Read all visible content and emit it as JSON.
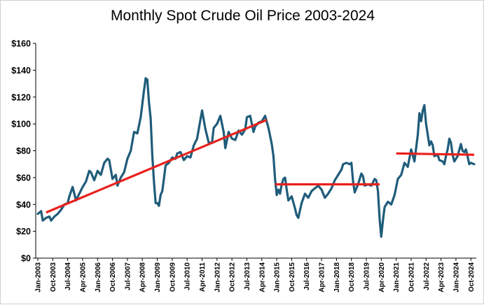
{
  "chart_data": {
    "type": "line",
    "title": "Monthly Spot Crude Oil Price 2003-2024",
    "xlabel": "",
    "ylabel": "",
    "ylim": [
      0,
      160
    ],
    "xlim": [
      "2003-01",
      "2024-12"
    ],
    "grid": false,
    "legend": "none",
    "y_tick_labels": [
      "$0",
      "$20",
      "$40",
      "$60",
      "$80",
      "$100",
      "$120",
      "$140",
      "$160"
    ],
    "x_tick_labels": [
      "Jan-2003",
      "Oct-2003",
      "Jul-2004",
      "Apr-2005",
      "Jan-2006",
      "Oct-2006",
      "Jul-2007",
      "Apr-2008",
      "Jan-2009",
      "Oct-2009",
      "Jul-2010",
      "Apr-2011",
      "Jan-2012",
      "Oct-2012",
      "Jul-2013",
      "Apr-2014",
      "Jan-2015",
      "Oct-2015",
      "Jul-2016",
      "Apr-2017",
      "Jan-2018",
      "Oct-2018",
      "Jul-2019",
      "Apr-2020",
      "Jan-2021",
      "Oct-2021",
      "Jul-2022",
      "Apr-2023",
      "Jan-2024",
      "Oct-2024"
    ],
    "series": [
      {
        "color": "#1f5c7a",
        "points": [
          [
            "2003-01",
            33
          ],
          [
            "2003-03",
            35
          ],
          [
            "2003-04",
            28
          ],
          [
            "2003-06",
            30
          ],
          [
            "2003-08",
            31
          ],
          [
            "2003-09",
            28
          ],
          [
            "2003-11",
            31
          ],
          [
            "2004-01",
            33
          ],
          [
            "2004-03",
            36
          ],
          [
            "2004-05",
            40
          ],
          [
            "2004-07",
            41
          ],
          [
            "2004-08",
            46
          ],
          [
            "2004-10",
            53
          ],
          [
            "2004-12",
            43
          ],
          [
            "2005-02",
            48
          ],
          [
            "2005-04",
            53
          ],
          [
            "2005-06",
            57
          ],
          [
            "2005-08",
            65
          ],
          [
            "2005-09",
            64
          ],
          [
            "2005-11",
            58
          ],
          [
            "2006-01",
            65
          ],
          [
            "2006-03",
            62
          ],
          [
            "2006-05",
            71
          ],
          [
            "2006-07",
            74
          ],
          [
            "2006-08",
            73
          ],
          [
            "2006-10",
            59
          ],
          [
            "2006-12",
            62
          ],
          [
            "2007-01",
            54
          ],
          [
            "2007-03",
            60
          ],
          [
            "2007-05",
            64
          ],
          [
            "2007-07",
            74
          ],
          [
            "2007-09",
            80
          ],
          [
            "2007-11",
            94
          ],
          [
            "2008-01",
            93
          ],
          [
            "2008-03",
            105
          ],
          [
            "2008-05",
            125
          ],
          [
            "2008-06",
            134
          ],
          [
            "2008-07",
            133
          ],
          [
            "2008-08",
            116
          ],
          [
            "2008-09",
            104
          ],
          [
            "2008-10",
            77
          ],
          [
            "2008-11",
            57
          ],
          [
            "2008-12",
            41
          ],
          [
            "2009-01",
            41
          ],
          [
            "2009-02",
            39
          ],
          [
            "2009-03",
            47
          ],
          [
            "2009-04",
            50
          ],
          [
            "2009-05",
            59
          ],
          [
            "2009-06",
            69
          ],
          [
            "2009-08",
            71
          ],
          [
            "2009-10",
            75
          ],
          [
            "2009-12",
            74
          ],
          [
            "2010-01",
            78
          ],
          [
            "2010-03",
            79
          ],
          [
            "2010-05",
            73
          ],
          [
            "2010-07",
            76
          ],
          [
            "2010-09",
            75
          ],
          [
            "2010-11",
            84
          ],
          [
            "2011-01",
            89
          ],
          [
            "2011-03",
            103
          ],
          [
            "2011-04",
            110
          ],
          [
            "2011-06",
            96
          ],
          [
            "2011-08",
            86
          ],
          [
            "2011-10",
            86
          ],
          [
            "2011-11",
            97
          ],
          [
            "2012-01",
            100
          ],
          [
            "2012-03",
            106
          ],
          [
            "2012-05",
            94
          ],
          [
            "2012-06",
            82
          ],
          [
            "2012-08",
            94
          ],
          [
            "2012-10",
            89
          ],
          [
            "2012-12",
            88
          ],
          [
            "2013-02",
            95
          ],
          [
            "2013-04",
            92
          ],
          [
            "2013-06",
            96
          ],
          [
            "2013-07",
            105
          ],
          [
            "2013-09",
            106
          ],
          [
            "2013-11",
            94
          ],
          [
            "2013-12",
            98
          ],
          [
            "2014-02",
            101
          ],
          [
            "2014-04",
            102
          ],
          [
            "2014-06",
            106
          ],
          [
            "2014-08",
            97
          ],
          [
            "2014-10",
            85
          ],
          [
            "2014-11",
            76
          ],
          [
            "2014-12",
            59
          ],
          [
            "2015-01",
            47
          ],
          [
            "2015-02",
            51
          ],
          [
            "2015-03",
            48
          ],
          [
            "2015-04",
            55
          ],
          [
            "2015-05",
            59
          ],
          [
            "2015-06",
            60
          ],
          [
            "2015-07",
            51
          ],
          [
            "2015-08",
            43
          ],
          [
            "2015-10",
            46
          ],
          [
            "2015-12",
            37
          ],
          [
            "2016-01",
            32
          ],
          [
            "2016-02",
            30
          ],
          [
            "2016-04",
            41
          ],
          [
            "2016-06",
            48
          ],
          [
            "2016-08",
            45
          ],
          [
            "2016-10",
            50
          ],
          [
            "2016-12",
            52
          ],
          [
            "2017-02",
            54
          ],
          [
            "2017-04",
            51
          ],
          [
            "2017-06",
            45
          ],
          [
            "2017-08",
            48
          ],
          [
            "2017-10",
            52
          ],
          [
            "2017-12",
            58
          ],
          [
            "2018-02",
            62
          ],
          [
            "2018-04",
            66
          ],
          [
            "2018-05",
            70
          ],
          [
            "2018-07",
            71
          ],
          [
            "2018-09",
            70
          ],
          [
            "2018-10",
            71
          ],
          [
            "2018-11",
            57
          ],
          [
            "2018-12",
            49
          ],
          [
            "2019-02",
            55
          ],
          [
            "2019-04",
            63
          ],
          [
            "2019-05",
            61
          ],
          [
            "2019-06",
            54
          ],
          [
            "2019-08",
            55
          ],
          [
            "2019-10",
            54
          ],
          [
            "2019-12",
            59
          ],
          [
            "2020-01",
            58
          ],
          [
            "2020-02",
            50
          ],
          [
            "2020-03",
            29
          ],
          [
            "2020-04",
            16
          ],
          [
            "2020-05",
            28
          ],
          [
            "2020-06",
            38
          ],
          [
            "2020-08",
            42
          ],
          [
            "2020-10",
            40
          ],
          [
            "2020-12",
            47
          ],
          [
            "2021-02",
            59
          ],
          [
            "2021-04",
            62
          ],
          [
            "2021-06",
            71
          ],
          [
            "2021-08",
            68
          ],
          [
            "2021-10",
            81
          ],
          [
            "2021-12",
            72
          ],
          [
            "2022-02",
            92
          ],
          [
            "2022-03",
            108
          ],
          [
            "2022-04",
            102
          ],
          [
            "2022-05",
            110
          ],
          [
            "2022-06",
            114
          ],
          [
            "2022-07",
            100
          ],
          [
            "2022-08",
            92
          ],
          [
            "2022-09",
            84
          ],
          [
            "2022-10",
            87
          ],
          [
            "2022-11",
            84
          ],
          [
            "2022-12",
            76
          ],
          [
            "2023-02",
            77
          ],
          [
            "2023-03",
            73
          ],
          [
            "2023-05",
            72
          ],
          [
            "2023-06",
            70
          ],
          [
            "2023-07",
            76
          ],
          [
            "2023-08",
            81
          ],
          [
            "2023-09",
            89
          ],
          [
            "2023-10",
            86
          ],
          [
            "2023-11",
            77
          ],
          [
            "2023-12",
            72
          ],
          [
            "2024-02",
            76
          ],
          [
            "2024-04",
            85
          ],
          [
            "2024-05",
            80
          ],
          [
            "2024-06",
            79
          ],
          [
            "2024-07",
            81
          ],
          [
            "2024-08",
            76
          ],
          [
            "2024-09",
            70
          ],
          [
            "2024-10",
            71
          ],
          [
            "2024-12",
            70
          ]
        ]
      }
    ],
    "trend_lines": [
      {
        "color": "#e8211c",
        "start": [
          "2003-06",
          34
        ],
        "end": [
          "2014-07",
          103
        ]
      },
      {
        "color": "#e8211c",
        "start": [
          "2014-12",
          55
        ],
        "end": [
          "2020-03",
          55
        ]
      },
      {
        "color": "#e8211c",
        "start": [
          "2021-01",
          78
        ],
        "end": [
          "2024-12",
          77
        ]
      }
    ]
  }
}
